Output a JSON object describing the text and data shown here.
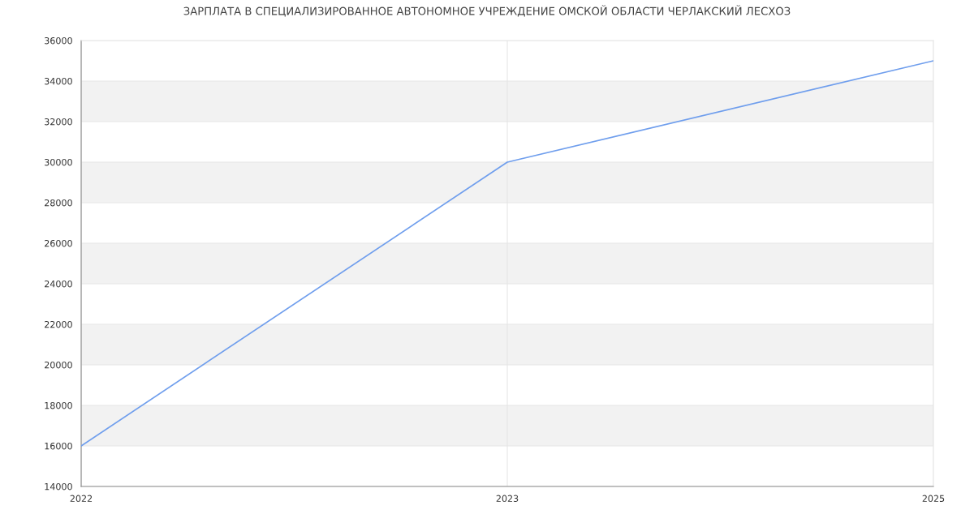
{
  "chart_data": {
    "type": "line",
    "title": "ЗАРПЛАТА В СПЕЦИАЛИЗИРОВАННОЕ АВТОНОМНОЕ УЧРЕЖДЕНИЕ ОМСКОЙ ОБЛАСТИ ЧЕРЛАКСКИЙ ЛЕСХОЗ",
    "categories": [
      "2022",
      "2023",
      "2025"
    ],
    "series": [
      {
        "color": "#6f9eed",
        "values": [
          16000,
          30000,
          35000
        ]
      }
    ],
    "ylim": [
      14000,
      36000
    ],
    "yticks": [
      14000,
      16000,
      18000,
      20000,
      22000,
      24000,
      26000,
      28000,
      30000,
      32000,
      34000,
      36000
    ],
    "bands": [
      {
        "axis": "y",
        "from": 16000,
        "to": 18000,
        "color": "#f2f2f2"
      },
      {
        "axis": "y",
        "from": 20000,
        "to": 22000,
        "color": "#f2f2f2"
      },
      {
        "axis": "y",
        "from": 24000,
        "to": 26000,
        "color": "#f2f2f2"
      },
      {
        "axis": "y",
        "from": 28000,
        "to": 30000,
        "color": "#f2f2f2"
      },
      {
        "axis": "y",
        "from": 32000,
        "to": 34000,
        "color": "#f2f2f2"
      }
    ],
    "grid": true,
    "marker": "none",
    "line_style": "solid",
    "legend": false
  }
}
